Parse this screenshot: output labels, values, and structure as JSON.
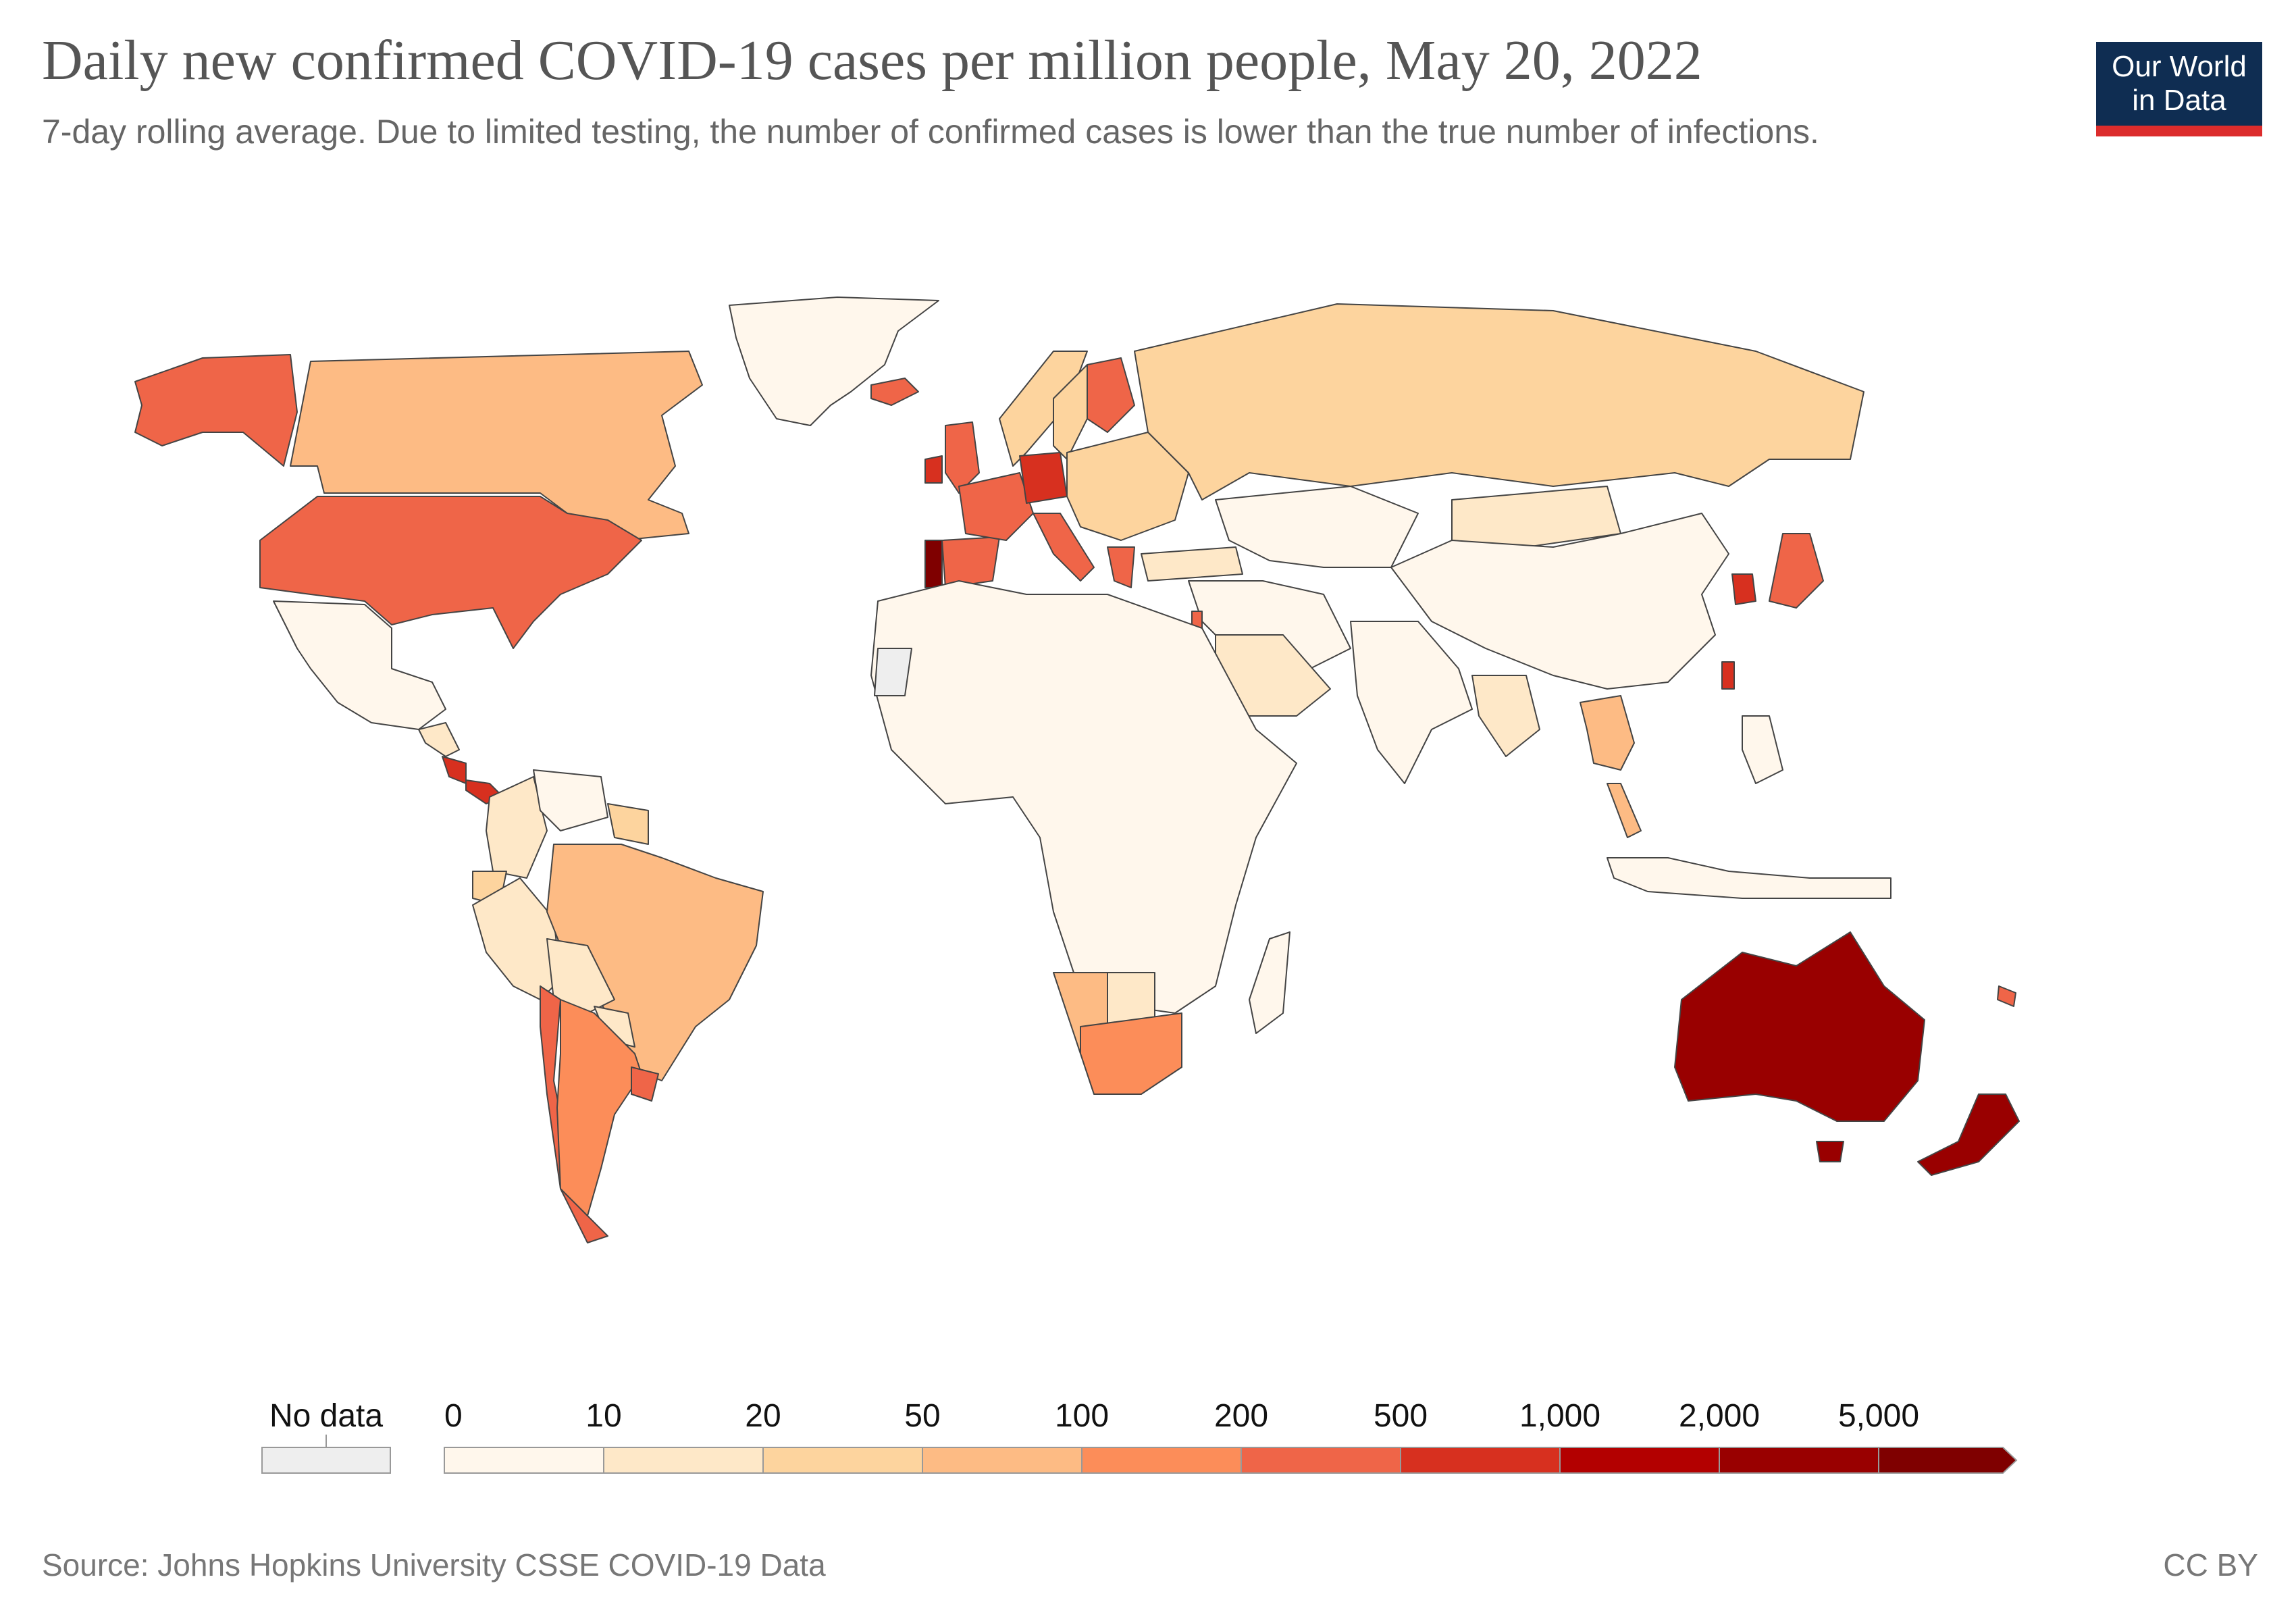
{
  "title": "Daily new confirmed COVID-19 cases per million people, May 20, 2022",
  "subtitle": "7-day rolling average. Due to limited testing, the number of confirmed cases is lower than the true number of infections.",
  "logo": {
    "line1": "Our World",
    "line2": "in Data",
    "bg": "#0f2d52",
    "accent": "#dc2c2c"
  },
  "source": "Source: Johns Hopkins University CSSE COVID-19 Data",
  "license": "CC BY",
  "legend": {
    "no_data_label": "No data",
    "no_data_color": "#eeeeee",
    "thresholds": [
      "0",
      "10",
      "20",
      "50",
      "100",
      "200",
      "500",
      "1,000",
      "2,000",
      "5,000"
    ],
    "colors": [
      "#fff7ec",
      "#fee8c8",
      "#fdd49e",
      "#fdbb84",
      "#fc8d59",
      "#ef6548",
      "#d7301f",
      "#b30000",
      "#990000",
      "#7f0000"
    ]
  },
  "map_data": {
    "metric": "Daily new confirmed COVID-19 cases per million people (7-day rolling average)",
    "date": "May 20, 2022",
    "regions": [
      {
        "name": "Greenland",
        "bin": 0
      },
      {
        "name": "Canada",
        "bin": 3
      },
      {
        "name": "Alaska",
        "bin": 5
      },
      {
        "name": "United States",
        "bin": 5
      },
      {
        "name": "Mexico",
        "bin": 0
      },
      {
        "name": "Central America",
        "bin": 1
      },
      {
        "name": "Costa Rica",
        "bin": 6
      },
      {
        "name": "Panama",
        "bin": 6
      },
      {
        "name": "Colombia",
        "bin": 1
      },
      {
        "name": "Venezuela",
        "bin": 0
      },
      {
        "name": "Guyana",
        "bin": 2
      },
      {
        "name": "Ecuador",
        "bin": 2
      },
      {
        "name": "Peru",
        "bin": 1
      },
      {
        "name": "Brazil",
        "bin": 3
      },
      {
        "name": "Bolivia",
        "bin": 1
      },
      {
        "name": "Paraguay",
        "bin": 1
      },
      {
        "name": "Chile",
        "bin": 5
      },
      {
        "name": "Argentina",
        "bin": 4
      },
      {
        "name": "Uruguay",
        "bin": 5
      },
      {
        "name": "Iceland",
        "bin": 5
      },
      {
        "name": "Ireland",
        "bin": 6
      },
      {
        "name": "United Kingdom",
        "bin": 5
      },
      {
        "name": "Norway",
        "bin": 2
      },
      {
        "name": "Sweden",
        "bin": 2
      },
      {
        "name": "Finland",
        "bin": 5
      },
      {
        "name": "Portugal",
        "bin": 9
      },
      {
        "name": "Spain",
        "bin": 5
      },
      {
        "name": "France",
        "bin": 5
      },
      {
        "name": "Germany",
        "bin": 6
      },
      {
        "name": "Italy",
        "bin": 5
      },
      {
        "name": "Eastern Europe",
        "bin": 2
      },
      {
        "name": "Greece",
        "bin": 5
      },
      {
        "name": "Turkey",
        "bin": 1
      },
      {
        "name": "Russia",
        "bin": 2
      },
      {
        "name": "Kazakhstan",
        "bin": 0
      },
      {
        "name": "Mongolia",
        "bin": 1
      },
      {
        "name": "China",
        "bin": 0
      },
      {
        "name": "Middle East",
        "bin": 0
      },
      {
        "name": "Saudi Arabia",
        "bin": 1
      },
      {
        "name": "Israel",
        "bin": 5
      },
      {
        "name": "India",
        "bin": 0
      },
      {
        "name": "Southeast Asia",
        "bin": 1
      },
      {
        "name": "Thailand",
        "bin": 3
      },
      {
        "name": "Malaysia",
        "bin": 3
      },
      {
        "name": "South Korea",
        "bin": 6
      },
      {
        "name": "Japan",
        "bin": 5
      },
      {
        "name": "Taiwan",
        "bin": 6
      },
      {
        "name": "Indonesia",
        "bin": 0
      },
      {
        "name": "Philippines",
        "bin": 0
      },
      {
        "name": "Africa",
        "bin": 0
      },
      {
        "name": "Western Sahara",
        "bin": -1
      },
      {
        "name": "Namibia",
        "bin": 3
      },
      {
        "name": "Botswana",
        "bin": 1
      },
      {
        "name": "South Africa",
        "bin": 4
      },
      {
        "name": "Madagascar",
        "bin": 0
      },
      {
        "name": "Australia",
        "bin": 8
      },
      {
        "name": "Tasmania",
        "bin": 8
      },
      {
        "name": "New Zealand",
        "bin": 8
      },
      {
        "name": "New Caledonia",
        "bin": 5
      }
    ]
  }
}
